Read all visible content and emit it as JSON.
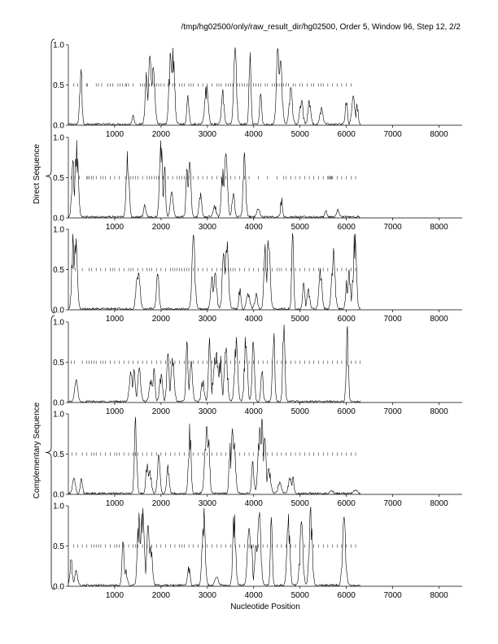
{
  "header": "/tmp/hg02500/only/raw_result_dir/hg02500, Order 5, Window 96, Step 12, 2/2",
  "xlabel": "Nucleotide Position",
  "group_labels": [
    "Direct Sequence",
    "Complementary Sequence"
  ],
  "chart_data": {
    "type": "line",
    "xlim": [
      0,
      8500
    ],
    "ylim": [
      0,
      1
    ],
    "x_ticks": [
      1000,
      2000,
      3000,
      4000,
      5000,
      6000,
      7000,
      8000
    ],
    "y_ticks": [
      0.0,
      0.5,
      1.0
    ],
    "x_tick_labels": [
      "1000",
      "2000",
      "3000",
      "4000",
      "5000",
      "6000",
      "7000",
      "8000"
    ],
    "y_tick_labels": [
      "0.0",
      "0.5",
      "1.0"
    ],
    "panels": [
      {
        "group": "Direct Sequence",
        "frame": 1,
        "seq_end": 6300,
        "peaks": [
          [
            270,
            0.8
          ],
          [
            1400,
            0.12
          ],
          [
            1680,
            0.65
          ],
          [
            1760,
            0.85
          ],
          [
            1830,
            0.7
          ],
          [
            2200,
            0.9
          ],
          [
            2260,
            0.95
          ],
          [
            2580,
            0.35
          ],
          [
            2980,
            0.5
          ],
          [
            3330,
            0.45
          ],
          [
            3600,
            0.96
          ],
          [
            3920,
            0.9
          ],
          [
            4150,
            0.4
          ],
          [
            4520,
            0.95
          ],
          [
            4580,
            0.8
          ],
          [
            4800,
            0.45
          ],
          [
            5030,
            0.32
          ],
          [
            5200,
            0.3
          ],
          [
            5460,
            0.2
          ],
          [
            6000,
            0.32
          ],
          [
            6150,
            0.35
          ],
          [
            6230,
            0.3
          ]
        ],
        "ticks": [
          120,
          200,
          390,
          410,
          600,
          650,
          720,
          850,
          900,
          960,
          1070,
          1120,
          1170,
          1230,
          1260,
          1300,
          1400,
          1550,
          1600,
          1650,
          1700,
          1750,
          1800,
          1850,
          1900,
          1950,
          2000,
          2070,
          2150,
          2250,
          2300,
          2400,
          2450,
          2500,
          2600,
          2650,
          2700,
          2800,
          2900,
          3000,
          3100,
          3200,
          3250,
          3300,
          3400,
          3450,
          3500,
          3550,
          3650,
          3700,
          3750,
          3800,
          3850,
          3900,
          4000,
          4050,
          4100,
          4150,
          4250,
          4300,
          4400,
          4450,
          4500,
          4550,
          4600,
          4650,
          4700,
          4750,
          4850,
          4900,
          5000,
          5050,
          5150,
          5250,
          5300,
          5400,
          5450,
          5500,
          5600,
          5700,
          5800,
          5900,
          6000,
          6100
        ]
      },
      {
        "group": "Direct Sequence",
        "frame": 2,
        "seq_end": 6300,
        "peaks": [
          [
            100,
            0.7
          ],
          [
            180,
            0.95
          ],
          [
            1280,
            0.85
          ],
          [
            1650,
            0.15
          ],
          [
            2000,
            0.98
          ],
          [
            2080,
            0.65
          ],
          [
            2230,
            0.3
          ],
          [
            2560,
            0.6
          ],
          [
            2620,
            0.7
          ],
          [
            2850,
            0.3
          ],
          [
            3160,
            0.15
          ],
          [
            3330,
            0.6
          ],
          [
            3400,
            0.8
          ],
          [
            3560,
            0.3
          ],
          [
            3800,
            0.8
          ],
          [
            4100,
            0.1
          ],
          [
            4600,
            0.25
          ],
          [
            5560,
            0.08
          ],
          [
            5820,
            0.1
          ]
        ],
        "ticks": [
          60,
          140,
          240,
          390,
          420,
          450,
          500,
          540,
          600,
          700,
          750,
          800,
          900,
          1000,
          1100,
          1230,
          1300,
          1350,
          1400,
          1450,
          1500,
          1600,
          1700,
          1750,
          1800,
          1850,
          1900,
          1950,
          2050,
          2150,
          2250,
          2350,
          2400,
          2450,
          2500,
          2550,
          2600,
          2700,
          2800,
          2900,
          3000,
          3100,
          3200,
          3300,
          3400,
          3500,
          3600,
          3700,
          3800,
          3900,
          4100,
          4300,
          4500,
          4650,
          4700,
          4800,
          4900,
          5000,
          5100,
          5200,
          5300,
          5400,
          5500,
          5600,
          5620,
          5640,
          5660,
          5680,
          5700,
          5800,
          5900,
          6000,
          6100,
          6200
        ]
      },
      {
        "group": "Direct Sequence",
        "frame": 3,
        "seq_end": 6300,
        "peaks": [
          [
            100,
            0.95
          ],
          [
            160,
            0.9
          ],
          [
            1480,
            0.4
          ],
          [
            1520,
            0.45
          ],
          [
            1930,
            0.48
          ],
          [
            2700,
            0.92
          ],
          [
            3100,
            0.4
          ],
          [
            3170,
            0.45
          ],
          [
            3350,
            0.7
          ],
          [
            3420,
            0.9
          ],
          [
            3700,
            0.28
          ],
          [
            3880,
            0.2
          ],
          [
            4050,
            0.2
          ],
          [
            4250,
            0.8
          ],
          [
            4320,
            0.92
          ],
          [
            4840,
            0.95
          ],
          [
            5080,
            0.32
          ],
          [
            5180,
            0.25
          ],
          [
            5440,
            0.5
          ],
          [
            5720,
            0.75
          ],
          [
            6000,
            0.35
          ],
          [
            6060,
            0.5
          ],
          [
            6180,
            0.98
          ]
        ],
        "ticks": [
          150,
          300,
          450,
          500,
          600,
          700,
          800,
          900,
          950,
          1000,
          1100,
          1200,
          1300,
          1350,
          1400,
          1500,
          1600,
          1700,
          1750,
          1800,
          1900,
          2000,
          2100,
          2200,
          2250,
          2300,
          2350,
          2400,
          2450,
          2500,
          2550,
          2600,
          2700,
          2800,
          2900,
          3000,
          3100,
          3200,
          3300,
          3400,
          3450,
          3500,
          3550,
          3600,
          3700,
          3800,
          3900,
          4000,
          4100,
          4200,
          4300,
          4400,
          4500,
          4550,
          4600,
          4700,
          4800,
          4900,
          5000,
          5100,
          5200,
          5300,
          5400,
          5500,
          5600,
          5700,
          5800,
          5900,
          6000,
          6100,
          6200
        ]
      },
      {
        "group": "Complementary Sequence",
        "frame": 1,
        "seq_end": 6300,
        "peaks": [
          [
            170,
            0.28
          ],
          [
            1350,
            0.38
          ],
          [
            1420,
            0.4
          ],
          [
            1530,
            0.42
          ],
          [
            1780,
            0.3
          ],
          [
            1850,
            0.42
          ],
          [
            2000,
            0.35
          ],
          [
            2150,
            0.6
          ],
          [
            2250,
            0.55
          ],
          [
            2560,
            0.75
          ],
          [
            2650,
            0.5
          ],
          [
            2900,
            0.3
          ],
          [
            3050,
            0.8
          ],
          [
            3150,
            0.55
          ],
          [
            3200,
            0.62
          ],
          [
            3280,
            0.6
          ],
          [
            3400,
            0.7
          ],
          [
            3620,
            0.8
          ],
          [
            3830,
            0.9
          ],
          [
            3990,
            0.75
          ],
          [
            4180,
            0.4
          ],
          [
            4430,
            0.92
          ],
          [
            4650,
            0.98
          ],
          [
            6020,
            0.95
          ]
        ],
        "ticks": [
          60,
          130,
          300,
          400,
          450,
          500,
          550,
          600,
          700,
          750,
          800,
          900,
          1000,
          1100,
          1200,
          1300,
          1400,
          1500,
          1600,
          1700,
          1800,
          1900,
          2000,
          2100,
          2200,
          2300,
          2400,
          2500,
          2600,
          2700,
          2800,
          2900,
          3000,
          3100,
          3200,
          3300,
          3400,
          3500,
          3600,
          3700,
          3800,
          3900,
          4000,
          4100,
          4200,
          4300,
          4400,
          4500,
          4600,
          4700,
          4800,
          4900,
          5000,
          5100,
          5200,
          5300,
          5400,
          5500,
          5600,
          5700,
          5800,
          5900,
          6000,
          6100,
          6200,
          6300
        ]
      },
      {
        "group": "Complementary Sequence",
        "frame": 2,
        "seq_end": 6300,
        "peaks": [
          [
            120,
            0.2
          ],
          [
            280,
            0.18
          ],
          [
            1450,
            0.95
          ],
          [
            1700,
            0.38
          ],
          [
            1760,
            0.3
          ],
          [
            1950,
            0.48
          ],
          [
            2150,
            0.35
          ],
          [
            2620,
            0.88
          ],
          [
            2980,
            0.85
          ],
          [
            3030,
            0.7
          ],
          [
            3490,
            0.62
          ],
          [
            3540,
            0.8
          ],
          [
            3580,
            0.65
          ],
          [
            3980,
            0.4
          ],
          [
            4130,
            0.82
          ],
          [
            4180,
            0.95
          ],
          [
            4240,
            0.7
          ],
          [
            4330,
            0.35
          ],
          [
            4560,
            0.15
          ],
          [
            4780,
            0.2
          ],
          [
            4850,
            0.2
          ],
          [
            5680,
            0.04
          ],
          [
            6200,
            0.04
          ]
        ],
        "ticks": [
          80,
          170,
          300,
          400,
          500,
          550,
          600,
          700,
          800,
          900,
          1000,
          1050,
          1100,
          1200,
          1300,
          1400,
          1450,
          1500,
          1600,
          1700,
          1800,
          1900,
          2000,
          2100,
          2200,
          2300,
          2400,
          2500,
          2600,
          2700,
          2800,
          2900,
          3000,
          3100,
          3200,
          3300,
          3400,
          3500,
          3600,
          3700,
          3800,
          3900,
          4000,
          4100,
          4200,
          4300,
          4400,
          4500,
          4600,
          4700,
          4800,
          4900,
          5000,
          5100,
          5200,
          5300,
          5400,
          5500,
          5600,
          5700,
          5800,
          5900,
          6000,
          6100,
          6200
        ]
      },
      {
        "group": "Complementary Sequence",
        "frame": 3,
        "seq_end": 6300,
        "peaks": [
          [
            60,
            0.35
          ],
          [
            170,
            0.18
          ],
          [
            1180,
            0.55
          ],
          [
            1240,
            0.2
          ],
          [
            1520,
            0.9
          ],
          [
            1600,
            0.98
          ],
          [
            1720,
            0.75
          ],
          [
            1780,
            0.5
          ],
          [
            2600,
            0.25
          ],
          [
            2920,
            0.98
          ],
          [
            3200,
            0.1
          ],
          [
            3580,
            0.98
          ],
          [
            3900,
            0.7
          ],
          [
            3950,
            0.55
          ],
          [
            4050,
            0.5
          ],
          [
            4120,
            0.92
          ],
          [
            4380,
            0.85
          ],
          [
            4750,
            0.9
          ],
          [
            5030,
            0.8
          ],
          [
            5230,
            0.98
          ],
          [
            5950,
            0.85
          ]
        ],
        "ticks": [
          120,
          200,
          300,
          400,
          500,
          550,
          600,
          650,
          700,
          800,
          900,
          1000,
          1050,
          1100,
          1200,
          1300,
          1400,
          1450,
          1500,
          1600,
          1700,
          1800,
          1900,
          2000,
          2100,
          2200,
          2300,
          2400,
          2450,
          2500,
          2600,
          2700,
          2800,
          2900,
          3000,
          3100,
          3200,
          3300,
          3400,
          3500,
          3600,
          3700,
          3800,
          3900,
          4000,
          4100,
          4200,
          4300,
          4400,
          4500,
          4600,
          4700,
          4800,
          4900,
          5000,
          5100,
          5200,
          5300,
          5400,
          5500,
          5600,
          5700,
          5800,
          5900,
          6000,
          6100,
          6200
        ]
      }
    ]
  }
}
